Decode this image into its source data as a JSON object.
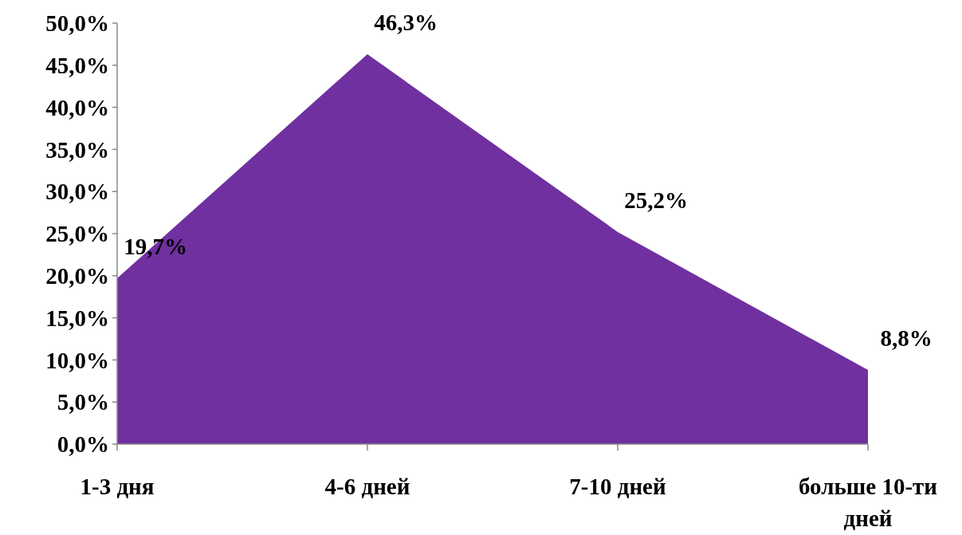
{
  "chart_data": {
    "type": "area",
    "categories": [
      "1-3 дня",
      "4-6 дней",
      "7-10 дней",
      "больше 10-ти дней"
    ],
    "values": [
      19.7,
      46.3,
      25.2,
      8.8
    ],
    "value_labels": [
      "19,7%",
      "46,3%",
      "25,2%",
      "8,8%"
    ],
    "color": "#7030a0",
    "ylim": [
      0,
      50
    ],
    "yticks": [
      {
        "value": 0,
        "label": "0,0%"
      },
      {
        "value": 5,
        "label": "5,0%"
      },
      {
        "value": 10,
        "label": "10,0%"
      },
      {
        "value": 15,
        "label": "15,0%"
      },
      {
        "value": 20,
        "label": "20,0%"
      },
      {
        "value": 25,
        "label": "25,0%"
      },
      {
        "value": 30,
        "label": "30,0%"
      },
      {
        "value": 35,
        "label": "35,0%"
      },
      {
        "value": 40,
        "label": "40,0%"
      },
      {
        "value": 45,
        "label": "45,0%"
      },
      {
        "value": 50,
        "label": "50,0%"
      }
    ],
    "grid": false
  }
}
